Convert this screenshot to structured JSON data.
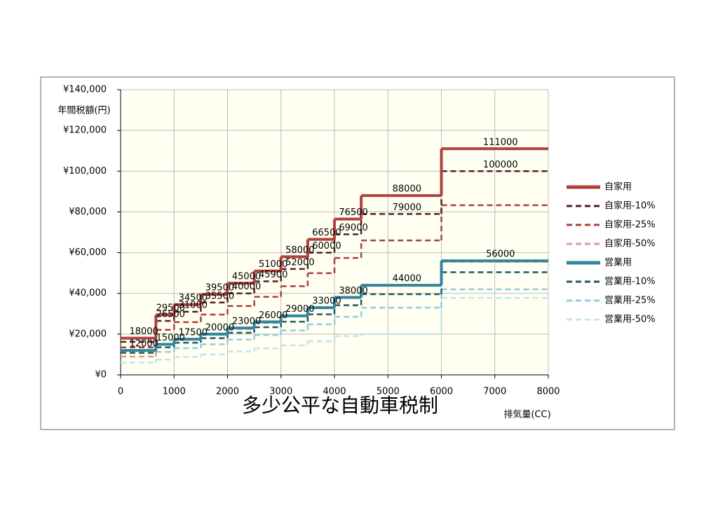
{
  "chart_data": {
    "type": "step",
    "title": "多少公平な自動車税制",
    "y_label": "年間税額(円)",
    "x_label": "排気量(CC)",
    "x": [
      0,
      660,
      1000,
      1500,
      2000,
      2500,
      3000,
      3500,
      4000,
      4500,
      6000
    ],
    "xlim": [
      0,
      8000
    ],
    "xticks": [
      0,
      1000,
      2000,
      3000,
      4000,
      5000,
      6000,
      7000,
      8000
    ],
    "ylim": [
      0,
      140000
    ],
    "yticks": [
      {
        "value": 0,
        "label": "¥0"
      },
      {
        "value": 20000,
        "label": "¥20,000"
      },
      {
        "value": 40000,
        "label": "¥40,000"
      },
      {
        "value": 60000,
        "label": "¥60,000"
      },
      {
        "value": 80000,
        "label": "¥80,000"
      },
      {
        "value": 100000,
        "label": "¥100,000"
      },
      {
        "value": 120000,
        "label": "¥120,000"
      },
      {
        "value": 140000,
        "label": "¥140,000"
      }
    ],
    "grid": true,
    "legend": "right",
    "series": [
      {
        "name": "自家用",
        "color": "#b0413e",
        "style": "solid",
        "values": [
          18000,
          29500,
          34500,
          39500,
          45000,
          51000,
          58000,
          66500,
          76500,
          88000,
          111000
        ],
        "value_labels": [
          "18000",
          "29500",
          "34500",
          "39500",
          "45000",
          "51000",
          "58000",
          "66500",
          "76500",
          "88000",
          "111000"
        ]
      },
      {
        "name": "自家用-10%",
        "color": "#5a1e1e",
        "style": "dashed",
        "values": [
          16200,
          26500,
          31000,
          35500,
          40000,
          45900,
          52000,
          60000,
          69000,
          79000,
          100000
        ],
        "value_labels": [
          null,
          "26500",
          "31000",
          "35500",
          "40000",
          "45900",
          "52000",
          "60000",
          "69000",
          "79000",
          "100000"
        ]
      },
      {
        "name": "自家用-25%",
        "color": "#a8403c",
        "style": "dashed",
        "values": [
          13500,
          22100,
          25900,
          29600,
          33800,
          38300,
          43500,
          49900,
          57400,
          66000,
          83300
        ]
      },
      {
        "name": "自家用-50%",
        "color": "#e29a96",
        "style": "dashed",
        "values": [
          9000,
          14800,
          17300,
          19800,
          22500,
          25500,
          29000,
          33300,
          38300,
          44000,
          55500
        ]
      },
      {
        "name": "営業用",
        "color": "#31859c",
        "style": "solid",
        "values": [
          12000,
          15000,
          17500,
          20000,
          23000,
          26000,
          29000,
          33000,
          38000,
          44000,
          56000
        ],
        "value_labels": [
          "12000",
          "15000",
          "17500",
          "20000",
          "23000",
          "26000",
          "29000",
          "33000",
          "38000",
          "44000",
          "56000"
        ]
      },
      {
        "name": "営業用-10%",
        "color": "#215967",
        "style": "dashed",
        "values": [
          10800,
          13500,
          15800,
          18000,
          20700,
          23400,
          26100,
          29700,
          34200,
          39600,
          50400
        ]
      },
      {
        "name": "営業用-25%",
        "color": "#93cddd",
        "style": "dashed",
        "values": [
          9000,
          11300,
          13100,
          15000,
          17300,
          19500,
          21800,
          24800,
          28500,
          33000,
          42000
        ]
      },
      {
        "name": "営業用-50%",
        "color": "#c4e3ec",
        "style": "dashed",
        "values": [
          6000,
          7500,
          8800,
          10000,
          11500,
          13000,
          14500,
          16500,
          19000,
          20000,
          37800
        ]
      }
    ]
  }
}
